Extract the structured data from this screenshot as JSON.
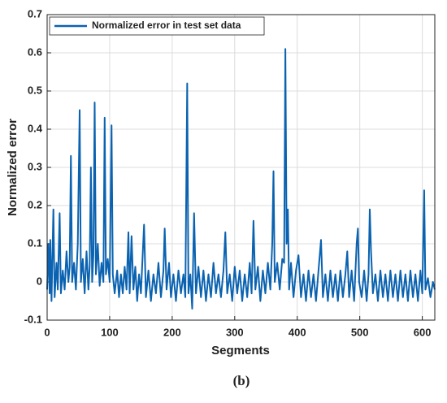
{
  "chart_data": {
    "type": "line",
    "xlabel": "Segments",
    "ylabel": "Normalized error",
    "caption": "(b)",
    "xlim": [
      0,
      620
    ],
    "ylim": [
      -0.1,
      0.7
    ],
    "xticks": [
      0,
      100,
      200,
      300,
      400,
      500,
      600
    ],
    "yticks": [
      -0.1,
      0,
      0.1,
      0.2,
      0.3,
      0.4,
      0.5,
      0.6,
      0.7
    ],
    "grid": true,
    "legend": "upper left",
    "x": [
      0,
      2,
      4,
      5,
      7,
      10,
      12,
      15,
      17,
      20,
      22,
      25,
      28,
      31,
      34,
      36,
      38,
      40,
      43,
      46,
      49,
      52,
      54,
      57,
      60,
      63,
      66,
      68,
      70,
      72,
      74,
      76,
      78,
      81,
      84,
      87,
      90,
      92,
      94,
      97,
      100,
      103,
      105,
      108,
      112,
      115,
      118,
      121,
      124,
      127,
      130,
      132,
      135,
      138,
      141,
      144,
      147,
      150,
      155,
      158,
      162,
      166,
      170,
      174,
      178,
      182,
      186,
      188,
      191,
      195,
      198,
      202,
      206,
      210,
      214,
      218,
      221,
      224,
      226,
      229,
      232,
      235,
      238,
      242,
      246,
      250,
      254,
      258,
      262,
      266,
      270,
      274,
      278,
      282,
      285,
      288,
      292,
      296,
      300,
      304,
      308,
      312,
      316,
      320,
      324,
      327,
      330,
      333,
      337,
      341,
      345,
      349,
      353,
      357,
      360,
      362,
      364,
      368,
      372,
      376,
      379,
      381,
      383,
      385,
      387,
      390,
      394,
      398,
      402,
      406,
      410,
      414,
      418,
      422,
      426,
      430,
      434,
      438,
      441,
      445,
      449,
      453,
      457,
      461,
      465,
      469,
      473,
      477,
      480,
      483,
      487,
      491,
      495,
      497,
      499,
      503,
      507,
      511,
      514,
      516,
      518,
      521,
      525,
      529,
      533,
      537,
      541,
      545,
      549,
      553,
      557,
      561,
      565,
      569,
      573,
      577,
      581,
      585,
      589,
      593,
      597,
      600,
      603,
      605,
      609,
      613,
      617,
      620
    ],
    "series": [
      {
        "name": "Normalized error in test set data",
        "color": "#0a62b0",
        "values": [
          -0.02,
          0.1,
          -0.03,
          0.11,
          -0.05,
          0.19,
          -0.04,
          0.05,
          -0.02,
          0.18,
          -0.03,
          0.03,
          -0.02,
          0.08,
          0.0,
          0.04,
          0.33,
          0.0,
          0.05,
          -0.02,
          0.1,
          0.45,
          0.0,
          0.06,
          -0.03,
          0.08,
          -0.02,
          0.04,
          0.3,
          0.0,
          0.07,
          0.47,
          0.02,
          0.1,
          -0.01,
          0.05,
          0.0,
          0.43,
          0.02,
          0.06,
          0.0,
          0.41,
          0.02,
          -0.03,
          0.03,
          -0.04,
          0.02,
          -0.03,
          0.04,
          -0.02,
          0.13,
          -0.03,
          0.12,
          -0.02,
          0.04,
          -0.05,
          0.02,
          -0.03,
          0.15,
          -0.04,
          0.03,
          -0.05,
          0.02,
          -0.03,
          0.05,
          -0.04,
          0.03,
          0.14,
          -0.02,
          0.05,
          -0.04,
          0.02,
          -0.05,
          0.03,
          -0.03,
          0.02,
          -0.04,
          0.52,
          -0.03,
          0.02,
          -0.07,
          0.18,
          -0.03,
          0.04,
          -0.04,
          0.03,
          -0.05,
          0.02,
          -0.04,
          0.05,
          -0.03,
          0.02,
          -0.04,
          0.03,
          0.13,
          -0.03,
          0.02,
          -0.05,
          0.04,
          -0.03,
          0.03,
          -0.05,
          0.02,
          -0.04,
          0.05,
          -0.03,
          0.16,
          -0.02,
          0.04,
          -0.05,
          0.03,
          -0.03,
          0.05,
          -0.02,
          0.1,
          0.29,
          0.0,
          0.05,
          -0.02,
          0.06,
          0.05,
          0.61,
          0.1,
          0.19,
          -0.02,
          0.05,
          -0.04,
          0.03,
          0.07,
          -0.04,
          0.02,
          -0.05,
          0.03,
          -0.04,
          0.02,
          -0.05,
          0.03,
          0.11,
          -0.04,
          0.02,
          -0.05,
          0.03,
          -0.04,
          0.02,
          -0.05,
          0.03,
          -0.04,
          0.02,
          0.08,
          -0.04,
          0.03,
          -0.05,
          0.1,
          0.14,
          0.0,
          -0.04,
          0.03,
          -0.05,
          0.02,
          0.19,
          0.08,
          -0.03,
          0.02,
          -0.05,
          0.03,
          -0.04,
          0.02,
          -0.05,
          0.03,
          -0.04,
          0.02,
          -0.05,
          0.03,
          -0.04,
          0.02,
          -0.05,
          0.03,
          -0.04,
          0.02,
          -0.05,
          0.03,
          -0.03,
          0.24,
          -0.02,
          0.01,
          -0.04,
          0.0,
          -0.02
        ]
      }
    ]
  }
}
